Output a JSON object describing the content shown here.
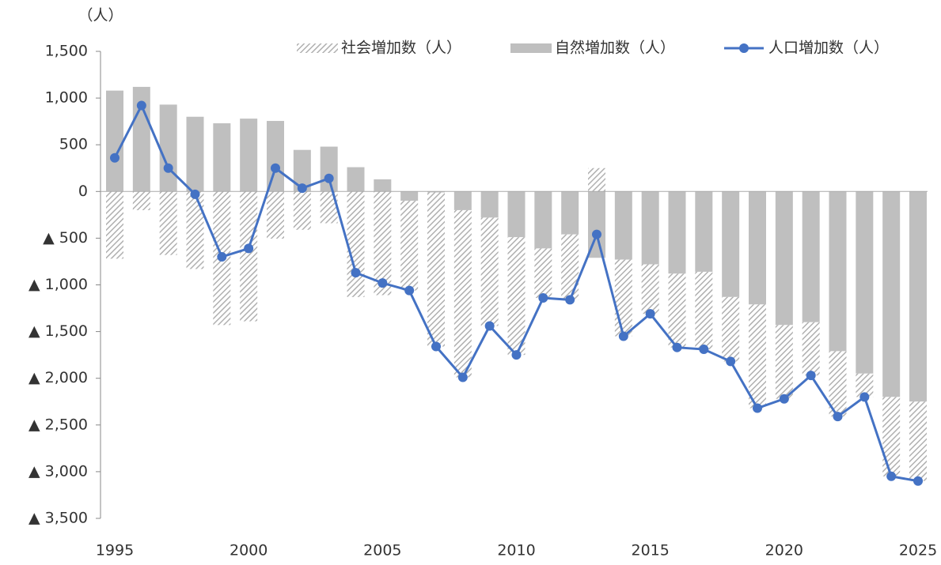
{
  "chart_data": {
    "type": "stacked-bar-line",
    "y_unit_label": "（人）",
    "x": [
      1995,
      1996,
      1997,
      1998,
      1999,
      2000,
      2001,
      2002,
      2003,
      2004,
      2005,
      2006,
      2007,
      2008,
      2009,
      2010,
      2011,
      2012,
      2013,
      2014,
      2015,
      2016,
      2017,
      2018,
      2019,
      2020,
      2021,
      2022,
      2023,
      2024,
      2025
    ],
    "series": [
      {
        "name": "社会増加数（人）",
        "kind": "bar",
        "pattern": "hatch",
        "color": "#bfbfbf",
        "values": [
          -720,
          -200,
          -680,
          -830,
          -1430,
          -1390,
          -505,
          -410,
          -340,
          -1130,
          -1110,
          -960,
          -1650,
          -1790,
          -1160,
          -1260,
          -530,
          -700,
          250,
          -820,
          -530,
          -790,
          -830,
          -690,
          -1110,
          -790,
          -570,
          -700,
          -250,
          -850,
          -850
        ]
      },
      {
        "name": "自然増加数（人）",
        "kind": "bar",
        "pattern": "solid",
        "color": "#bfbfbf",
        "values": [
          1080,
          1120,
          930,
          800,
          730,
          780,
          755,
          445,
          480,
          260,
          130,
          -100,
          -10,
          -200,
          -280,
          -490,
          -610,
          -460,
          -710,
          -730,
          -780,
          -880,
          -860,
          -1130,
          -1210,
          -1430,
          -1400,
          -1710,
          -1950,
          -2200,
          -2250
        ]
      },
      {
        "name": "人口増加数（人）",
        "kind": "line",
        "color": "#4472c4",
        "values": [
          360,
          920,
          250,
          -30,
          -700,
          -610,
          250,
          35,
          140,
          -870,
          -980,
          -1060,
          -1660,
          -1990,
          -1440,
          -1750,
          -1140,
          -1160,
          -460,
          -1550,
          -1310,
          -1670,
          -1690,
          -1820,
          -2320,
          -2220,
          -1970,
          -2410,
          -2200,
          -3050,
          -3100
        ]
      }
    ],
    "xlim": [
      1995,
      2025
    ],
    "xticks": [
      1995,
      2000,
      2005,
      2010,
      2015,
      2020,
      2025
    ],
    "ylim": [
      -3500,
      1500
    ],
    "yticks": [
      {
        "value": 1500,
        "label": "1,500"
      },
      {
        "value": 1000,
        "label": "1,000"
      },
      500,
      0,
      {
        "value": -500,
        "label": "▲ 500"
      },
      {
        "value": -1000,
        "label": "▲ 1,000"
      },
      {
        "value": -1500,
        "label": "▲ 1,500"
      },
      {
        "value": -2000,
        "label": "▲ 2,000"
      },
      {
        "value": -2500,
        "label": "▲ 2,500"
      },
      {
        "value": -3000,
        "label": "▲ 3,000"
      },
      {
        "value": -3500,
        "label": "▲ 3,500"
      }
    ],
    "legend": "top-right"
  }
}
